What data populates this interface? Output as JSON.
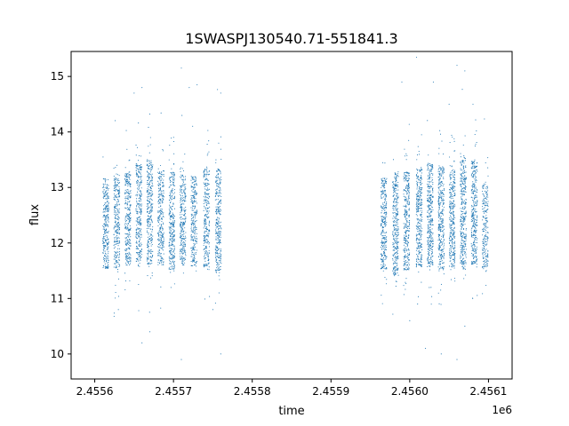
{
  "chart_data": {
    "type": "scatter",
    "title": "1SWASPJ130540.71-551841.3",
    "xlabel": "time",
    "ylabel": "flux",
    "x_offset_label": "1e6",
    "xlim": [
      2.45557,
      2.45613
    ],
    "ylim": [
      9.55,
      15.45
    ],
    "x_ticks": [
      2.4556,
      2.4557,
      2.4558,
      2.4559,
      2.456,
      2.4561
    ],
    "x_tick_labels": [
      "2.4556",
      "2.4557",
      "2.4558",
      "2.4559",
      "2.4560",
      "2.4561"
    ],
    "y_ticks": [
      10,
      11,
      12,
      13,
      14,
      15
    ],
    "y_tick_labels": [
      "10",
      "11",
      "12",
      "13",
      "14",
      "15"
    ],
    "marker_color": "#1f77b4",
    "grid": false,
    "legend": "none",
    "series": [
      {
        "values": "approx. dense point cloud; see clusters",
        "clusters": [
          {
            "x": 2.455614,
            "center": 12.35,
            "spread": 0.48,
            "n": 280
          },
          {
            "x": 2.455628,
            "center": 12.4,
            "spread": 0.5,
            "n": 280
          },
          {
            "x": 2.455642,
            "center": 12.45,
            "spread": 0.5,
            "n": 300
          },
          {
            "x": 2.455656,
            "center": 12.55,
            "spread": 0.52,
            "n": 300
          },
          {
            "x": 2.45567,
            "center": 12.55,
            "spread": 0.55,
            "n": 320
          },
          {
            "x": 2.455684,
            "center": 12.45,
            "spread": 0.5,
            "n": 280
          },
          {
            "x": 2.455698,
            "center": 12.4,
            "spread": 0.52,
            "n": 300
          },
          {
            "x": 2.455712,
            "center": 12.45,
            "spread": 0.5,
            "n": 280
          },
          {
            "x": 2.455726,
            "center": 12.4,
            "spread": 0.48,
            "n": 260
          },
          {
            "x": 2.455742,
            "center": 12.45,
            "spread": 0.52,
            "n": 280
          },
          {
            "x": 2.455757,
            "center": 12.4,
            "spread": 0.55,
            "n": 300
          },
          {
            "x": 2.455967,
            "center": 12.35,
            "spread": 0.48,
            "n": 300
          },
          {
            "x": 2.455982,
            "center": 12.35,
            "spread": 0.55,
            "n": 320
          },
          {
            "x": 2.455996,
            "center": 12.4,
            "spread": 0.52,
            "n": 320
          },
          {
            "x": 2.456012,
            "center": 12.45,
            "spread": 0.52,
            "n": 320
          },
          {
            "x": 2.456026,
            "center": 12.5,
            "spread": 0.55,
            "n": 340
          },
          {
            "x": 2.45604,
            "center": 12.45,
            "spread": 0.55,
            "n": 340
          },
          {
            "x": 2.456054,
            "center": 12.45,
            "spread": 0.52,
            "n": 320
          },
          {
            "x": 2.456068,
            "center": 12.55,
            "spread": 0.6,
            "n": 340
          },
          {
            "x": 2.456082,
            "center": 12.55,
            "spread": 0.55,
            "n": 330
          },
          {
            "x": 2.456096,
            "center": 12.3,
            "spread": 0.45,
            "n": 220
          }
        ],
        "outliers": [
          [
            2.45565,
            14.7
          ],
          [
            2.45566,
            14.8
          ],
          [
            2.45572,
            14.8
          ],
          [
            2.45571,
            15.15
          ],
          [
            2.45573,
            14.85
          ],
          [
            2.45576,
            14.7
          ],
          [
            2.45566,
            10.2
          ],
          [
            2.45567,
            10.4
          ],
          [
            2.45571,
            9.9
          ],
          [
            2.45576,
            10.0
          ],
          [
            2.45575,
            10.8
          ],
          [
            2.45563,
            10.8
          ],
          [
            2.45599,
            14.9
          ],
          [
            2.45603,
            14.9
          ],
          [
            2.45606,
            15.2
          ],
          [
            2.45607,
            15.1
          ],
          [
            2.45605,
            14.5
          ],
          [
            2.45604,
            10.0
          ],
          [
            2.45606,
            9.9
          ],
          [
            2.45607,
            10.5
          ],
          [
            2.45602,
            10.1
          ],
          [
            2.456,
            10.6
          ],
          [
            2.45608,
            11.0
          ],
          [
            2.45601,
            10.9
          ]
        ]
      }
    ]
  }
}
